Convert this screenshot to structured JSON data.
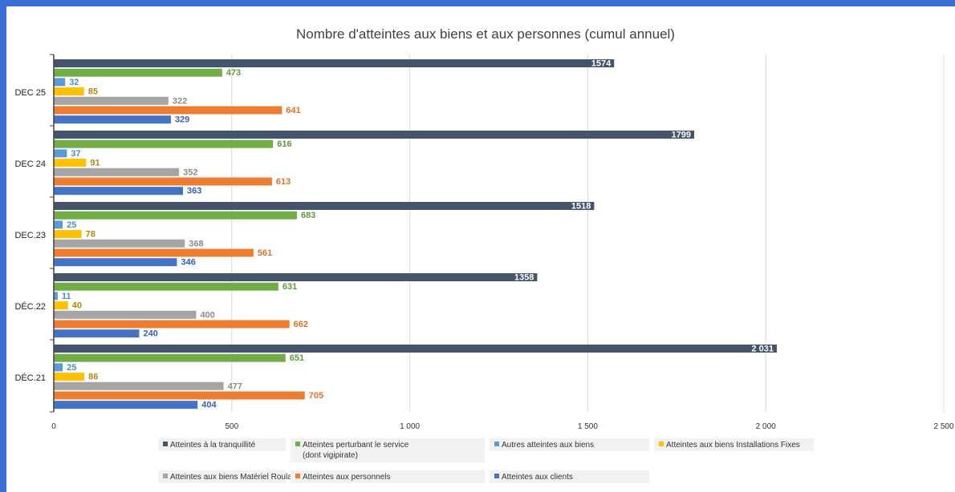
{
  "chart_data": {
    "type": "bar",
    "orientation": "horizontal",
    "title": "Nombre d'atteintes aux biens et aux personnes (cumul annuel)",
    "xlabel": "",
    "ylabel": "",
    "xlim": [
      0,
      2500
    ],
    "x_ticks": [
      0,
      500,
      1000,
      1500,
      2000,
      2500
    ],
    "x_tick_labels": [
      "0",
      "500",
      "1 000",
      "1 500",
      "2 000",
      "2 500"
    ],
    "grid": "vertical",
    "legend_position": "bottom",
    "categories": [
      "DEC 25",
      "DEC 24",
      "DEC.23",
      "DÉC.22",
      "DÉC.21"
    ],
    "series": [
      {
        "name": "Atteintes à la tranquillité",
        "color": "#44546a",
        "label_color": "#ffffff",
        "label_inside": true,
        "values": [
          1574,
          1799,
          1518,
          1358,
          2031
        ],
        "labels": [
          "1574",
          "1799",
          "1518",
          "1358",
          "2 031"
        ]
      },
      {
        "name": "Atteintes perturbant le service (dont vigipirate)",
        "legend_lines": [
          "Atteintes perturbant le service",
          "(dont vigipirate)"
        ],
        "color": "#70ad47",
        "label_color": "#5e9a3a",
        "label_inside": false,
        "values": [
          473,
          616,
          683,
          631,
          651
        ],
        "labels": [
          "473",
          "616",
          "683",
          "631",
          "651"
        ]
      },
      {
        "name": "Autres atteintes aux biens",
        "color": "#5b9bd5",
        "label_color": "#4a8ccc",
        "label_inside": false,
        "values": [
          32,
          37,
          25,
          11,
          25
        ],
        "labels": [
          "32",
          "37",
          "25",
          "11",
          "25"
        ]
      },
      {
        "name": "Atteintes aux biens Installations Fixes",
        "color": "#ffc000",
        "label_color": "#b8860b",
        "label_inside": false,
        "values": [
          85,
          91,
          78,
          40,
          86
        ],
        "labels": [
          "85",
          "91",
          "78",
          "40",
          "86"
        ]
      },
      {
        "name": "Atteintes aux biens Matériel Roulant",
        "color": "#a5a5a5",
        "label_color": "#8c8c8c",
        "label_inside": false,
        "label_bold": false,
        "values": [
          322,
          352,
          368,
          400,
          477
        ],
        "labels": [
          "322",
          "352",
          "368",
          "400",
          "477"
        ]
      },
      {
        "name": "Atteintes aux personnels",
        "color": "#ed7d31",
        "label_color": "#e0702a",
        "label_inside": false,
        "values": [
          641,
          613,
          561,
          662,
          705
        ],
        "labels": [
          "641",
          "613",
          "561",
          "662",
          "705"
        ]
      },
      {
        "name": "Atteintes aux clients",
        "color": "#4472c4",
        "label_color": "#3461b0",
        "label_inside": false,
        "values": [
          329,
          363,
          346,
          240,
          404
        ],
        "labels": [
          "329",
          "363",
          "346",
          "240",
          "404"
        ]
      }
    ]
  }
}
